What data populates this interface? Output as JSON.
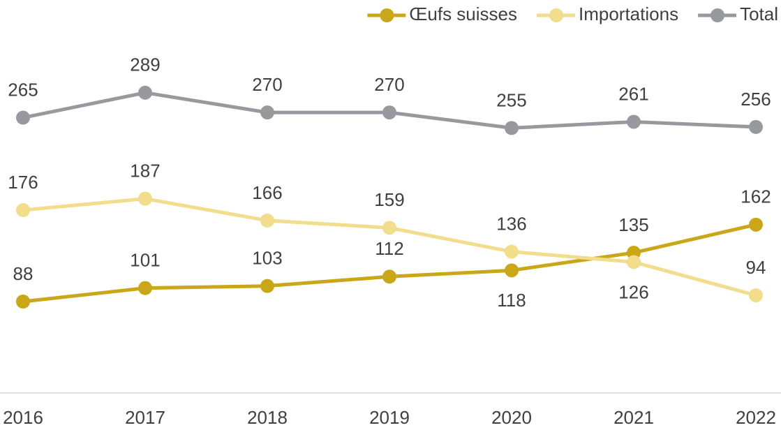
{
  "chart_data": {
    "type": "line",
    "x": [
      2016,
      2017,
      2018,
      2019,
      2020,
      2021,
      2022
    ],
    "xlim": [
      2016,
      2022
    ],
    "ylim": [
      0,
      350
    ],
    "series": [
      {
        "name": "Œufs suisses",
        "color": "#c9a718",
        "values": [
          88,
          101,
          103,
          112,
          118,
          135,
          162
        ]
      },
      {
        "name": "Importations",
        "color": "#f1dd8c",
        "values": [
          176,
          187,
          166,
          159,
          136,
          126,
          94
        ]
      },
      {
        "name": "Total",
        "color": "#98999e",
        "values": [
          265,
          289,
          270,
          270,
          255,
          261,
          256
        ]
      }
    ],
    "legend": "top-right"
  }
}
